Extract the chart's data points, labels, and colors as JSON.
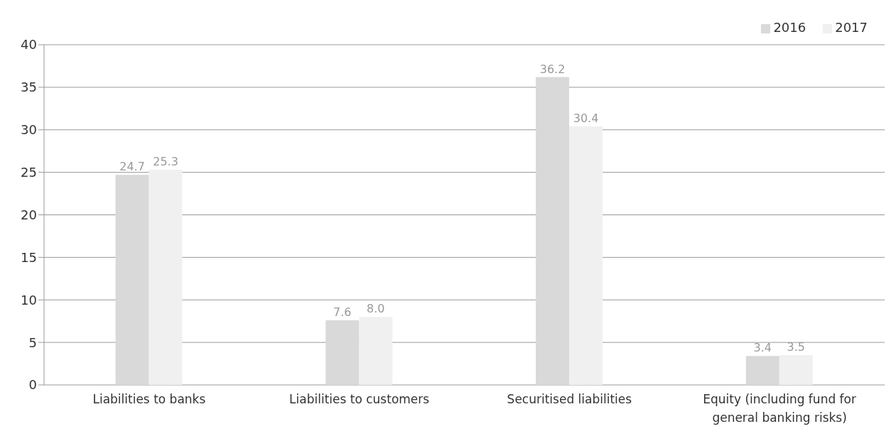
{
  "chart_data": {
    "type": "bar",
    "categories": [
      "Liabilities to banks",
      "Liabilities to customers",
      "Securitised liabilities",
      "Equity (including fund for general banking risks)"
    ],
    "series": [
      {
        "name": "2016",
        "color": "#d9d9d9",
        "values": [
          24.7,
          7.6,
          36.2,
          3.4
        ],
        "value_labels": [
          "24.7",
          "7.6",
          "36.2",
          "3.4"
        ]
      },
      {
        "name": "2017",
        "color": "#f0f0f0",
        "values": [
          25.3,
          8.0,
          30.4,
          3.5
        ],
        "value_labels": [
          "25.3",
          "8.0",
          "30.4",
          "3.5"
        ]
      }
    ],
    "ylim": [
      0,
      40
    ],
    "yticks": [
      0,
      5,
      10,
      15,
      20,
      25,
      30,
      35,
      40
    ],
    "grid": "y",
    "legend": "top right"
  }
}
